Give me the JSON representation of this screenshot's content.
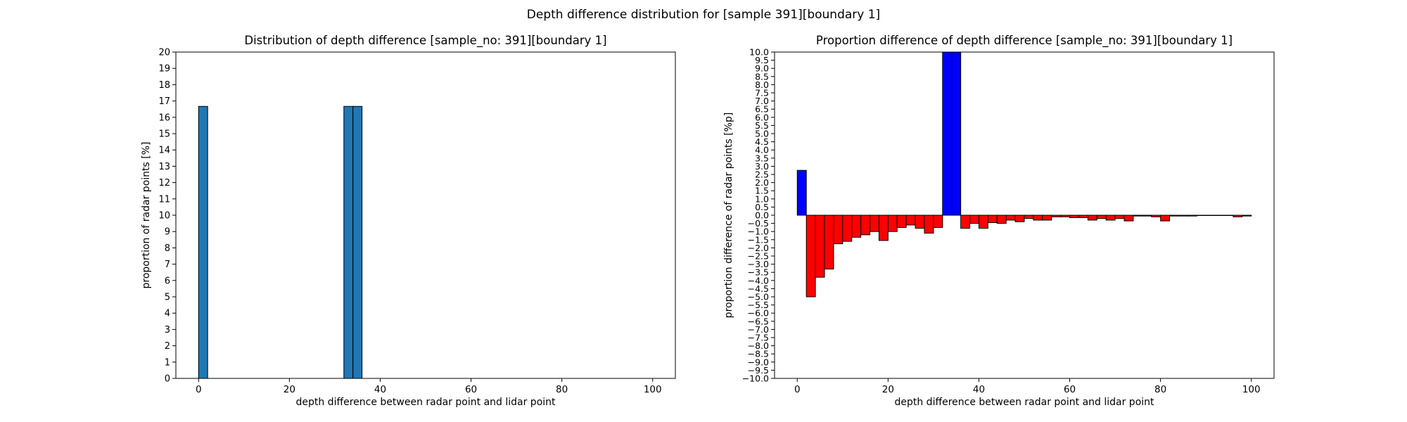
{
  "suptitle": "Depth difference distribution for [sample 391][boundary 1]",
  "chart_data": [
    {
      "type": "bar",
      "title": "Distribution of depth difference [sample_no: 391][boundary 1]",
      "xlabel": "depth difference between radar point and lidar point",
      "ylabel": "proportion of radar points [%]",
      "xlim": [
        -5,
        105
      ],
      "ylim": [
        0,
        20
      ],
      "xticks": [
        0,
        20,
        40,
        60,
        80,
        100
      ],
      "xtick_labels": [
        "0",
        "20",
        "40",
        "60",
        "80",
        "100"
      ],
      "yticks": [
        0,
        1,
        2,
        3,
        4,
        5,
        6,
        7,
        8,
        9,
        10,
        11,
        12,
        13,
        14,
        15,
        16,
        17,
        18,
        19,
        20
      ],
      "ytick_labels": [
        "0",
        "1",
        "2",
        "3",
        "4",
        "5",
        "6",
        "7",
        "8",
        "9",
        "10",
        "11",
        "12",
        "13",
        "14",
        "15",
        "16",
        "17",
        "18",
        "19",
        "20"
      ],
      "bin_width": 2,
      "bins": [
        {
          "x": 0,
          "value": 16.67
        },
        {
          "x": 32,
          "value": 16.67
        },
        {
          "x": 34,
          "value": 16.67
        }
      ],
      "color": "#1f77b4",
      "edge_color": "#000000",
      "grid": false
    },
    {
      "type": "bar",
      "title": "Proportion difference of depth difference [sample_no: 391][boundary 1]",
      "xlabel": "depth difference between radar point and lidar point",
      "ylabel": "proportion difference of radar points [%p]",
      "xlim": [
        -5,
        105
      ],
      "ylim": [
        -10,
        10
      ],
      "xticks": [
        0,
        20,
        40,
        60,
        80,
        100
      ],
      "xtick_labels": [
        "0",
        "20",
        "40",
        "60",
        "80",
        "100"
      ],
      "yticks": [
        -10,
        -9.5,
        -9,
        -8.5,
        -8,
        -7.5,
        -7,
        -6.5,
        -6,
        -5.5,
        -5,
        -4.5,
        -4,
        -3.5,
        -3,
        -2.5,
        -2,
        -1.5,
        -1,
        -0.5,
        0,
        0.5,
        1,
        1.5,
        2,
        2.5,
        3,
        3.5,
        4,
        4.5,
        5,
        5.5,
        6,
        6.5,
        7,
        7.5,
        8,
        8.5,
        9,
        9.5,
        10
      ],
      "ytick_labels": [
        "−10.0",
        "−9.5",
        "−9.0",
        "−8.5",
        "−8.0",
        "−7.5",
        "−7.0",
        "−6.5",
        "−6.0",
        "−5.5",
        "−5.0",
        "−4.5",
        "−4.0",
        "−3.5",
        "−3.0",
        "−2.5",
        "−2.0",
        "−1.5",
        "−1.0",
        "−0.5",
        "0.0",
        "0.5",
        "1.0",
        "1.5",
        "2.0",
        "2.5",
        "3.0",
        "3.5",
        "4.0",
        "4.5",
        "5.0",
        "5.5",
        "6.0",
        "6.5",
        "7.0",
        "7.5",
        "8.0",
        "8.5",
        "9.0",
        "9.5",
        "10.0"
      ],
      "bin_width": 2,
      "bins": [
        {
          "x": 0,
          "value": 2.75
        },
        {
          "x": 2,
          "value": -5.0
        },
        {
          "x": 4,
          "value": -3.8
        },
        {
          "x": 6,
          "value": -3.3
        },
        {
          "x": 8,
          "value": -1.75
        },
        {
          "x": 10,
          "value": -1.6
        },
        {
          "x": 12,
          "value": -1.35
        },
        {
          "x": 14,
          "value": -1.2
        },
        {
          "x": 16,
          "value": -1.0
        },
        {
          "x": 18,
          "value": -1.55
        },
        {
          "x": 20,
          "value": -1.0
        },
        {
          "x": 22,
          "value": -0.75
        },
        {
          "x": 24,
          "value": -0.6
        },
        {
          "x": 26,
          "value": -0.8
        },
        {
          "x": 28,
          "value": -1.1
        },
        {
          "x": 30,
          "value": -0.75
        },
        {
          "x": 32,
          "value": 10.0
        },
        {
          "x": 34,
          "value": 10.0
        },
        {
          "x": 36,
          "value": -0.8
        },
        {
          "x": 38,
          "value": -0.5
        },
        {
          "x": 40,
          "value": -0.8
        },
        {
          "x": 42,
          "value": -0.45
        },
        {
          "x": 44,
          "value": -0.5
        },
        {
          "x": 46,
          "value": -0.3
        },
        {
          "x": 48,
          "value": -0.4
        },
        {
          "x": 50,
          "value": -0.2
        },
        {
          "x": 52,
          "value": -0.3
        },
        {
          "x": 54,
          "value": -0.3
        },
        {
          "x": 56,
          "value": -0.1
        },
        {
          "x": 58,
          "value": -0.1
        },
        {
          "x": 60,
          "value": -0.15
        },
        {
          "x": 62,
          "value": -0.15
        },
        {
          "x": 64,
          "value": -0.3
        },
        {
          "x": 66,
          "value": -0.2
        },
        {
          "x": 68,
          "value": -0.3
        },
        {
          "x": 70,
          "value": -0.2
        },
        {
          "x": 72,
          "value": -0.35
        },
        {
          "x": 74,
          "value": -0.05
        },
        {
          "x": 76,
          "value": -0.05
        },
        {
          "x": 78,
          "value": -0.1
        },
        {
          "x": 80,
          "value": -0.35
        },
        {
          "x": 82,
          "value": -0.05
        },
        {
          "x": 84,
          "value": -0.05
        },
        {
          "x": 86,
          "value": -0.05
        },
        {
          "x": 88,
          "value": -0.02
        },
        {
          "x": 90,
          "value": -0.02
        },
        {
          "x": 92,
          "value": -0.02
        },
        {
          "x": 94,
          "value": -0.02
        },
        {
          "x": 96,
          "value": -0.1
        },
        {
          "x": 98,
          "value": -0.05
        }
      ],
      "positive_color": "#0000ff",
      "negative_color": "#ff0000",
      "edge_color": "#000000",
      "grid": false
    }
  ]
}
